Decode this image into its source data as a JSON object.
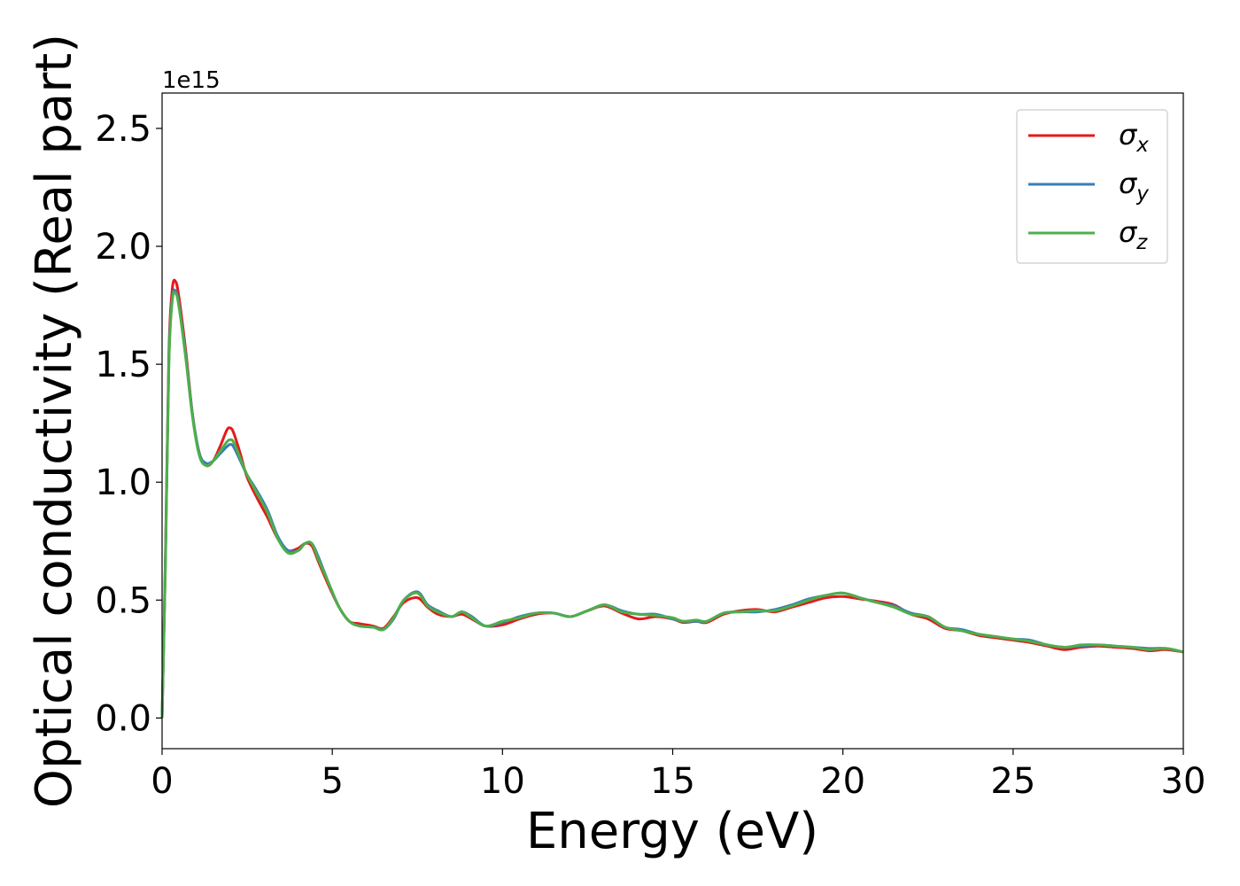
{
  "chart_data": {
    "type": "line",
    "title": "",
    "xlabel": "Energy (eV)",
    "ylabel": "Optical conductivity (Real part)",
    "offset_text": "1e15",
    "y_scale_multiplier": 1000000000000000.0,
    "xlim": [
      0,
      30
    ],
    "ylim": [
      -0.13,
      2.65
    ],
    "x_ticks": [
      0,
      5,
      10,
      15,
      20,
      25,
      30
    ],
    "x_tick_labels": [
      "0",
      "5",
      "10",
      "15",
      "20",
      "25",
      "30"
    ],
    "y_ticks": [
      0.0,
      0.5,
      1.0,
      1.5,
      2.0,
      2.5
    ],
    "y_tick_labels": [
      "0.0",
      "0.5",
      "1.0",
      "1.5",
      "2.0",
      "2.5"
    ],
    "grid": false,
    "legend_position": "top-right",
    "x": [
      0,
      0.1,
      0.2,
      0.3,
      0.4,
      0.5,
      0.7,
      0.9,
      1.1,
      1.3,
      1.5,
      1.7,
      1.9,
      2.0,
      2.1,
      2.3,
      2.5,
      2.8,
      3.1,
      3.4,
      3.7,
      4.0,
      4.2,
      4.4,
      4.6,
      4.9,
      5.2,
      5.5,
      5.8,
      6.2,
      6.5,
      6.8,
      7.1,
      7.5,
      7.8,
      8.1,
      8.5,
      8.8,
      9.1,
      9.5,
      10.0,
      10.5,
      11.0,
      11.5,
      12.0,
      12.5,
      13.0,
      13.5,
      14.0,
      14.5,
      15.0,
      15.3,
      15.7,
      16.0,
      16.5,
      17.0,
      17.5,
      18.0,
      18.5,
      19.0,
      19.5,
      20.0,
      20.5,
      21.0,
      21.5,
      22.0,
      22.5,
      23.0,
      23.5,
      24.0,
      24.5,
      25.0,
      25.5,
      26.0,
      26.5,
      27.0,
      27.5,
      28.0,
      28.5,
      29.0,
      29.5,
      30.0
    ],
    "series": [
      {
        "name": "σx",
        "color": "#e41a1c",
        "values": [
          0.0,
          0.7,
          1.55,
          1.82,
          1.85,
          1.78,
          1.55,
          1.28,
          1.12,
          1.07,
          1.09,
          1.15,
          1.22,
          1.23,
          1.21,
          1.12,
          1.02,
          0.93,
          0.85,
          0.76,
          0.71,
          0.72,
          0.74,
          0.73,
          0.66,
          0.56,
          0.47,
          0.41,
          0.4,
          0.39,
          0.38,
          0.43,
          0.49,
          0.51,
          0.47,
          0.44,
          0.43,
          0.44,
          0.42,
          0.39,
          0.395,
          0.42,
          0.44,
          0.445,
          0.43,
          0.455,
          0.475,
          0.445,
          0.42,
          0.43,
          0.42,
          0.405,
          0.41,
          0.405,
          0.44,
          0.455,
          0.46,
          0.45,
          0.47,
          0.49,
          0.51,
          0.515,
          0.505,
          0.495,
          0.48,
          0.44,
          0.42,
          0.38,
          0.37,
          0.35,
          0.34,
          0.33,
          0.32,
          0.305,
          0.29,
          0.3,
          0.305,
          0.3,
          0.295,
          0.285,
          0.29,
          0.28
        ]
      },
      {
        "name": "σy",
        "color": "#377eb8",
        "values": [
          0.0,
          0.68,
          1.52,
          1.78,
          1.81,
          1.75,
          1.53,
          1.28,
          1.12,
          1.08,
          1.09,
          1.12,
          1.15,
          1.16,
          1.15,
          1.09,
          1.03,
          0.96,
          0.88,
          0.77,
          0.71,
          0.71,
          0.74,
          0.74,
          0.68,
          0.57,
          0.47,
          0.41,
          0.39,
          0.385,
          0.375,
          0.42,
          0.5,
          0.535,
          0.48,
          0.455,
          0.43,
          0.45,
          0.43,
          0.39,
          0.405,
          0.43,
          0.445,
          0.445,
          0.43,
          0.455,
          0.48,
          0.455,
          0.44,
          0.44,
          0.42,
          0.41,
          0.41,
          0.41,
          0.445,
          0.45,
          0.45,
          0.46,
          0.48,
          0.505,
          0.52,
          0.53,
          0.51,
          0.49,
          0.475,
          0.445,
          0.43,
          0.385,
          0.375,
          0.355,
          0.345,
          0.335,
          0.33,
          0.31,
          0.3,
          0.305,
          0.31,
          0.305,
          0.3,
          0.295,
          0.295,
          0.28
        ]
      },
      {
        "name": "σz",
        "color": "#4daf4a",
        "values": [
          0.0,
          0.66,
          1.5,
          1.77,
          1.8,
          1.74,
          1.52,
          1.27,
          1.11,
          1.07,
          1.09,
          1.13,
          1.17,
          1.18,
          1.17,
          1.1,
          1.03,
          0.95,
          0.87,
          0.76,
          0.7,
          0.71,
          0.74,
          0.74,
          0.67,
          0.57,
          0.47,
          0.41,
          0.39,
          0.385,
          0.375,
          0.425,
          0.5,
          0.53,
          0.475,
          0.45,
          0.43,
          0.45,
          0.425,
          0.39,
          0.41,
          0.425,
          0.445,
          0.445,
          0.43,
          0.455,
          0.48,
          0.45,
          0.44,
          0.435,
          0.425,
          0.41,
          0.415,
          0.41,
          0.445,
          0.45,
          0.455,
          0.455,
          0.475,
          0.5,
          0.52,
          0.53,
          0.51,
          0.49,
          0.47,
          0.44,
          0.43,
          0.385,
          0.37,
          0.355,
          0.345,
          0.335,
          0.325,
          0.31,
          0.3,
          0.31,
          0.31,
          0.305,
          0.3,
          0.29,
          0.295,
          0.28
        ]
      }
    ]
  },
  "legend": {
    "items": [
      {
        "base": "σ",
        "sub": "x",
        "color": "#e41a1c"
      },
      {
        "base": "σ",
        "sub": "y",
        "color": "#377eb8"
      },
      {
        "base": "σ",
        "sub": "z",
        "color": "#4daf4a"
      }
    ]
  }
}
